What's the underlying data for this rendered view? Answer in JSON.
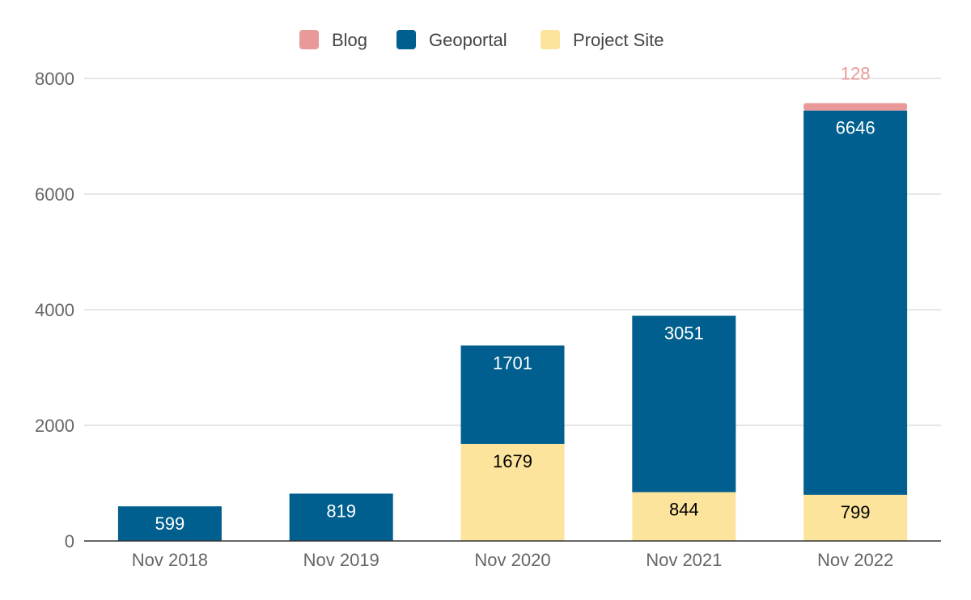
{
  "chart_data": {
    "type": "bar",
    "stacked": true,
    "categories": [
      "Nov 2018",
      "Nov 2019",
      "Nov 2020",
      "Nov 2021",
      "Nov 2022"
    ],
    "series": [
      {
        "name": "Project Site",
        "color": "#fde49c",
        "label_color": "#000000",
        "values": [
          0,
          0,
          1679,
          844,
          799
        ]
      },
      {
        "name": "Geoportal",
        "color": "#005f8e",
        "label_color": "#ffffff",
        "values": [
          599,
          819,
          1701,
          3051,
          6646
        ]
      },
      {
        "name": "Blog",
        "color": "#ea9999",
        "label_color": "#ea9999",
        "values": [
          0,
          0,
          0,
          0,
          128
        ]
      }
    ],
    "legend_order": [
      "Blog",
      "Geoportal",
      "Project Site"
    ],
    "ylim": [
      0,
      8000
    ],
    "yticks": [
      0,
      2000,
      4000,
      6000,
      8000
    ],
    "grid": true,
    "legend_position": "top"
  }
}
